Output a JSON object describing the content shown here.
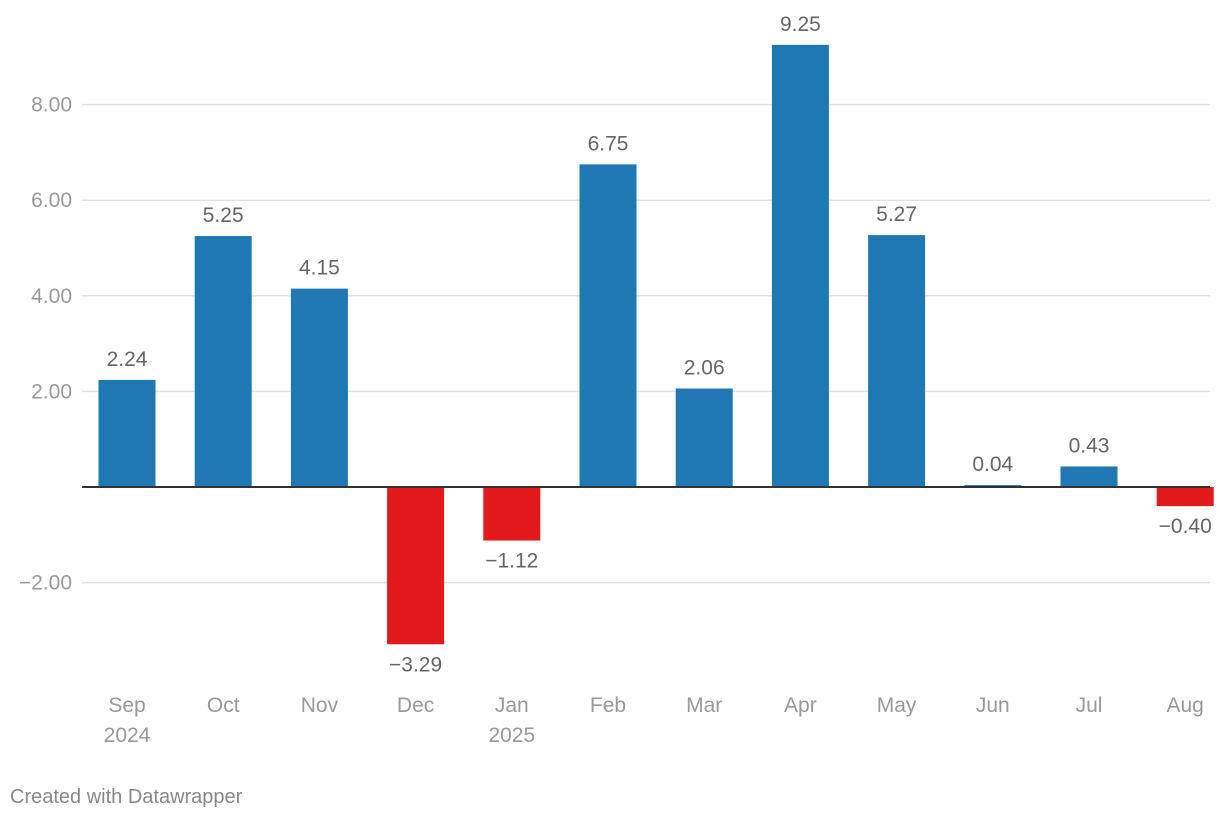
{
  "chart_data": {
    "type": "bar",
    "categories": [
      {
        "line1": "Sep",
        "line2": "2024"
      },
      {
        "line1": "Oct",
        "line2": ""
      },
      {
        "line1": "Nov",
        "line2": ""
      },
      {
        "line1": "Dec",
        "line2": ""
      },
      {
        "line1": "Jan",
        "line2": "2025"
      },
      {
        "line1": "Feb",
        "line2": ""
      },
      {
        "line1": "Mar",
        "line2": ""
      },
      {
        "line1": "Apr",
        "line2": ""
      },
      {
        "line1": "May",
        "line2": ""
      },
      {
        "line1": "Jun",
        "line2": ""
      },
      {
        "line1": "Jul",
        "line2": ""
      },
      {
        "line1": "Aug",
        "line2": ""
      }
    ],
    "values": [
      2.24,
      5.25,
      4.15,
      -3.29,
      -1.12,
      6.75,
      2.06,
      9.25,
      5.27,
      0.04,
      0.43,
      -0.4
    ],
    "value_labels": [
      "2.24",
      "5.25",
      "4.15",
      "−3.29",
      "−1.12",
      "6.75",
      "2.06",
      "9.25",
      "5.27",
      "0.04",
      "0.43",
      "−0.40"
    ],
    "y_ticks": [
      {
        "value": 8,
        "label": "8.00"
      },
      {
        "value": 6,
        "label": "6.00"
      },
      {
        "value": 4,
        "label": "4.00"
      },
      {
        "value": 2,
        "label": "2.00"
      },
      {
        "value": -2,
        "label": "−2.00"
      }
    ],
    "ylim": [
      -4.0,
      9.5
    ],
    "grid": true,
    "title": "",
    "xlabel": "",
    "ylabel": "",
    "colors": {
      "positive": "#1f77b4",
      "negative": "#e31a1c",
      "grid": "#e0e0e0",
      "axis": "#333333",
      "tick_text": "#999999",
      "label_text": "#666666"
    }
  },
  "footer": {
    "credit": "Created with Datawrapper"
  }
}
